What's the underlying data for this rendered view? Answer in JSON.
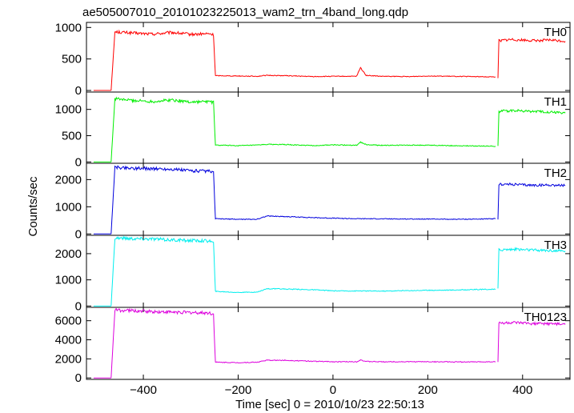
{
  "chart_data": {
    "type": "line",
    "title": "ae505007010_20101023225013_wam2_trn_4band_long.qdp",
    "xlabel": "Time [sec] 0 = 2010/10/23 22:50:13",
    "ylabel": "Counts/sec",
    "xlim": [
      -520,
      500
    ],
    "x_ticks": [
      -400,
      -200,
      0,
      200,
      400
    ],
    "grid": false,
    "panels": [
      {
        "name": "TH0",
        "color": "#ff0000",
        "ylim": [
          -25,
          1080
        ],
        "y_ticks": [
          0,
          500,
          1000
        ],
        "segments": [
          {
            "x": [
              -505,
              -468
            ],
            "y": [
              0,
              0
            ]
          },
          {
            "x": [
              -468,
              -460,
              -420,
              -380,
              -340,
              -300,
              -260,
              -252,
              -248,
              -200,
              -160,
              -140,
              -100,
              -40,
              0,
              50,
              58,
              70,
              100,
              160,
              200,
              250,
              300,
              343
            ],
            "y": [
              0,
              930,
              910,
              895,
              920,
              890,
              900,
              880,
              235,
              230,
              225,
              240,
              235,
              220,
              225,
              225,
              360,
              240,
              225,
              220,
              230,
              225,
              220,
              215
            ]
          },
          {
            "x": [
              348,
              350,
              380,
              420,
              460,
              490
            ],
            "y": [
              215,
              790,
              810,
              790,
              800,
              780
            ]
          }
        ]
      },
      {
        "name": "TH1",
        "color": "#00ee00",
        "ylim": [
          -25,
          1330
        ],
        "y_ticks": [
          0,
          500,
          1000
        ],
        "segments": [
          {
            "x": [
              -505,
              -468
            ],
            "y": [
              0,
              0
            ]
          },
          {
            "x": [
              -468,
              -460,
              -420,
              -380,
              -340,
              -300,
              -260,
              -252,
              -248,
              -200,
              -160,
              -140,
              -100,
              -40,
              0,
              50,
              58,
              70,
              100,
              160,
              200,
              250,
              300,
              343
            ],
            "y": [
              0,
              1200,
              1170,
              1150,
              1180,
              1140,
              1150,
              1130,
              320,
              310,
              320,
              335,
              330,
              310,
              325,
              320,
              380,
              330,
              315,
              320,
              320,
              310,
              305,
              300
            ]
          },
          {
            "x": [
              348,
              350,
              380,
              420,
              460,
              490
            ],
            "y": [
              300,
              960,
              980,
              960,
              950,
              930
            ]
          }
        ]
      },
      {
        "name": "TH2",
        "color": "#0000dd",
        "ylim": [
          -50,
          2600
        ],
        "y_ticks": [
          0,
          1000,
          2000
        ],
        "segments": [
          {
            "x": [
              -505,
              -468
            ],
            "y": [
              0,
              0
            ]
          },
          {
            "x": [
              -468,
              -460,
              -420,
              -380,
              -340,
              -300,
              -260,
              -252,
              -248,
              -200,
              -160,
              -140,
              -100,
              -40,
              0,
              50,
              58,
              70,
              100,
              160,
              200,
              250,
              300,
              343
            ],
            "y": [
              0,
              2450,
              2420,
              2400,
              2380,
              2330,
              2300,
              2250,
              560,
              540,
              540,
              660,
              640,
              600,
              580,
              560,
              560,
              560,
              555,
              550,
              550,
              540,
              545,
              560
            ]
          },
          {
            "x": [
              348,
              350,
              380,
              420,
              460,
              490
            ],
            "y": [
              560,
              1830,
              1820,
              1790,
              1800,
              1780
            ]
          }
        ]
      },
      {
        "name": "TH3",
        "color": "#00eeee",
        "ylim": [
          -50,
          2700
        ],
        "y_ticks": [
          0,
          1000,
          2000
        ],
        "segments": [
          {
            "x": [
              -505,
              -468
            ],
            "y": [
              0,
              0
            ]
          },
          {
            "x": [
              -468,
              -460,
              -420,
              -380,
              -340,
              -300,
              -260,
              -252,
              -248,
              -200,
              -160,
              -140,
              -100,
              -40,
              0,
              50,
              58,
              70,
              100,
              160,
              200,
              250,
              300,
              343
            ],
            "y": [
              0,
              2600,
              2570,
              2560,
              2520,
              2500,
              2490,
              2400,
              560,
              520,
              530,
              660,
              650,
              620,
              580,
              575,
              580,
              575,
              570,
              590,
              600,
              610,
              630,
              640
            ]
          },
          {
            "x": [
              348,
              350,
              380,
              420,
              460,
              490
            ],
            "y": [
              640,
              2150,
              2170,
              2140,
              2120,
              2100
            ]
          }
        ]
      },
      {
        "name": "TH0123",
        "color": "#dd00dd",
        "ylim": [
          -150,
          7400
        ],
        "y_ticks": [
          0,
          2000,
          4000,
          6000
        ],
        "segments": [
          {
            "x": [
              -505,
              -468
            ],
            "y": [
              0,
              0
            ]
          },
          {
            "x": [
              -468,
              -460,
              -420,
              -380,
              -340,
              -300,
              -260,
              -252,
              -248,
              -200,
              -160,
              -140,
              -100,
              -40,
              0,
              50,
              58,
              70,
              100,
              160,
              200,
              250,
              300,
              343
            ],
            "y": [
              0,
              7100,
              7050,
              6950,
              6900,
              6850,
              6800,
              6650,
              1650,
              1600,
              1650,
              1850,
              1850,
              1750,
              1700,
              1700,
              1900,
              1720,
              1700,
              1700,
              1700,
              1680,
              1680,
              1700
            ]
          },
          {
            "x": [
              348,
              350,
              380,
              420,
              460,
              490
            ],
            "y": [
              1700,
              5750,
              5780,
              5700,
              5680,
              5600
            ]
          }
        ]
      }
    ]
  }
}
